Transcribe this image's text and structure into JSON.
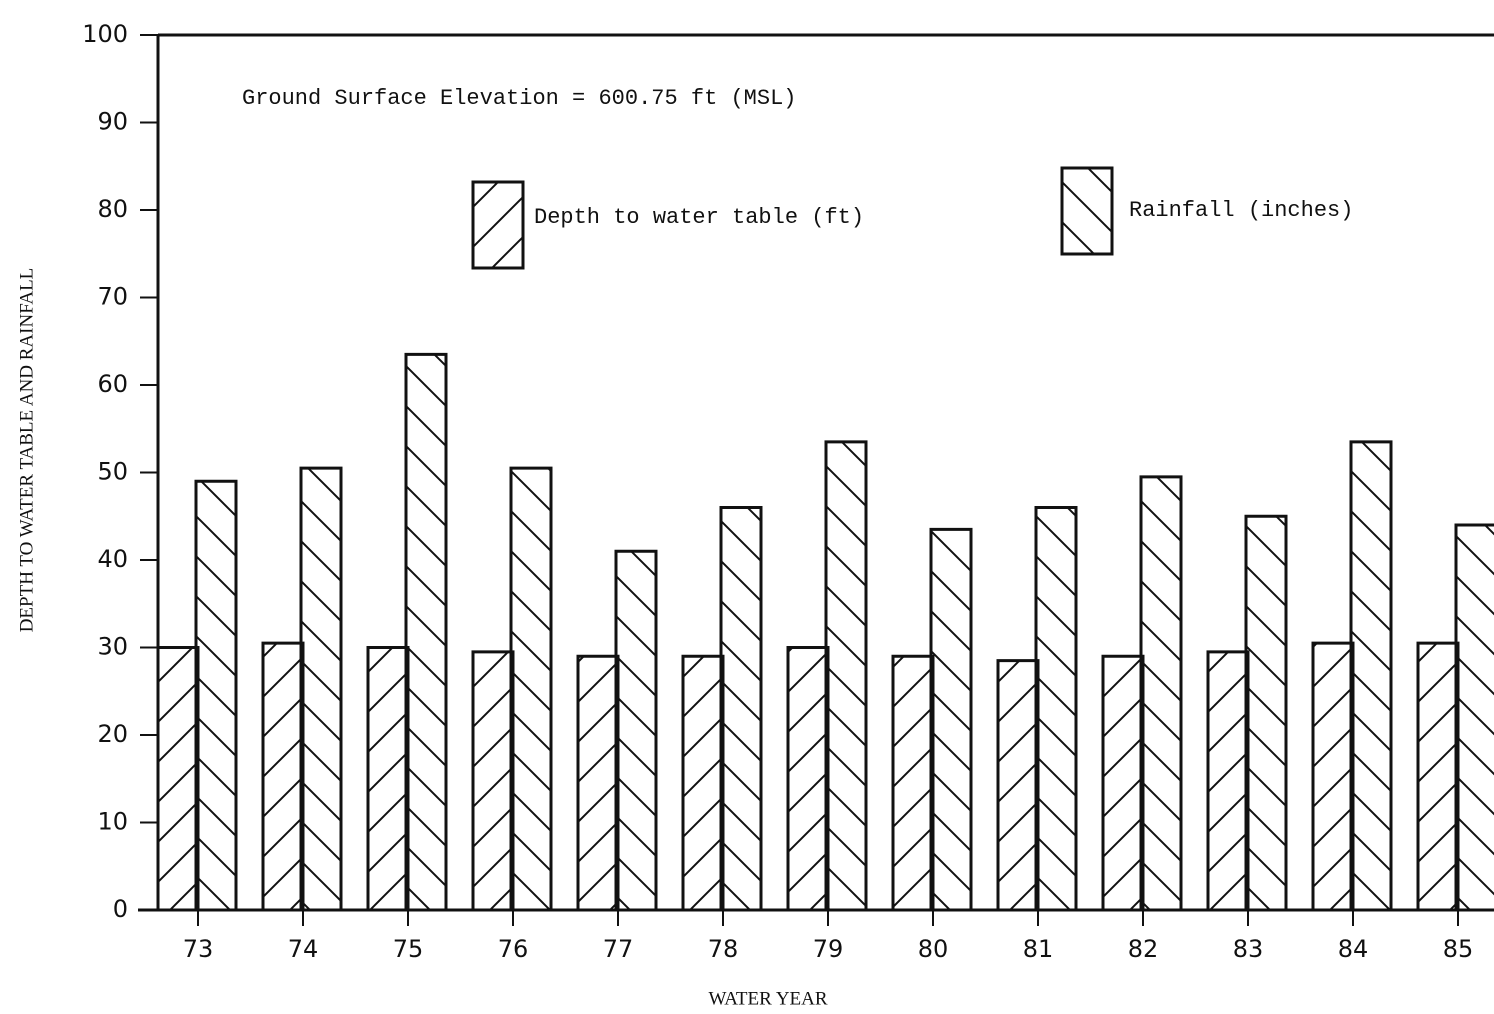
{
  "chart_data": {
    "type": "bar",
    "annotation": "Ground Surface Elevation = 600.75 ft (MSL)",
    "x_label": "WATER YEAR",
    "y_label": "DEPTH TO WATER TABLE AND RAINFALL",
    "categories": [
      "73",
      "74",
      "75",
      "76",
      "77",
      "78",
      "79",
      "80",
      "81",
      "82",
      "83",
      "84",
      "85"
    ],
    "series": [
      {
        "name": "Depth to water table (ft)",
        "color": "#111111",
        "hatch": "/",
        "values": [
          30,
          30.5,
          30,
          29.5,
          29,
          29,
          30,
          29,
          28.5,
          29,
          29.5,
          30.5,
          30.5
        ]
      },
      {
        "name": "Rainfall (inches)",
        "color": "#111111",
        "hatch": "\\",
        "values": [
          49,
          50.5,
          63.5,
          50.5,
          41,
          46,
          53.5,
          43.5,
          46,
          49.5,
          45,
          53.5,
          44
        ]
      }
    ],
    "ylim": [
      0,
      100
    ],
    "yticks": [
      0,
      10,
      20,
      30,
      40,
      50,
      60,
      70,
      80,
      90,
      100
    ],
    "grid": false
  }
}
